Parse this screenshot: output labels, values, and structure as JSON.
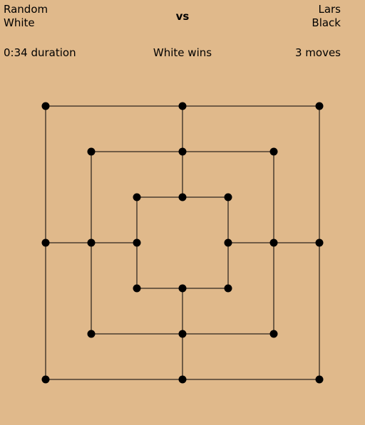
{
  "players": {
    "left": {
      "name": "Random",
      "color": "White"
    },
    "right": {
      "name": "Lars",
      "color": "Black"
    },
    "separator": "vs"
  },
  "status": {
    "duration": "0:34 duration",
    "result": "White wins",
    "moves": "3 moves"
  },
  "board": {
    "background_color": "#e0b98b",
    "line_color": "#000000",
    "point_color": "#000000",
    "points": [
      "a7",
      "d7",
      "g7",
      "b6",
      "d6",
      "f6",
      "c5",
      "d5",
      "e5",
      "a4",
      "b4",
      "c4",
      "e4",
      "f4",
      "g4",
      "c3",
      "d3",
      "e3",
      "b2",
      "d2",
      "f2",
      "a1",
      "d1",
      "g1"
    ]
  }
}
